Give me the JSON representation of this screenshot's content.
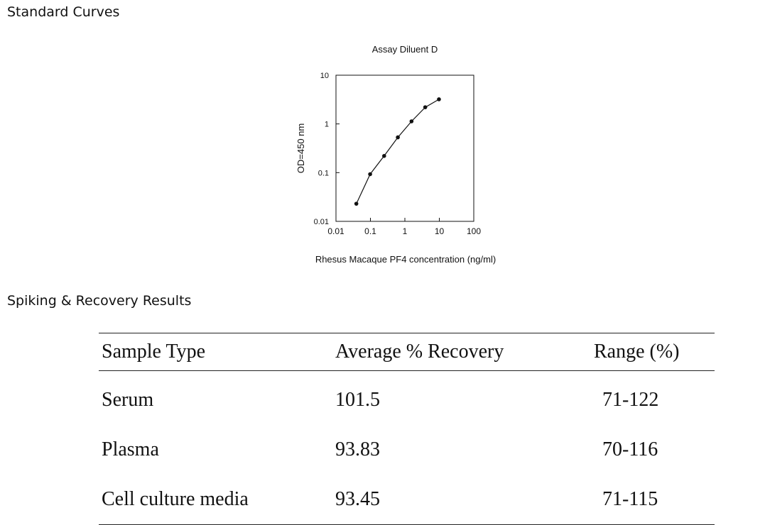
{
  "sections": {
    "standard_curves": "Standard Curves",
    "spiking_recovery": "Spiking & Recovery Results"
  },
  "chart_data": {
    "type": "line",
    "title": "Assay Diluent D",
    "xlabel": "Rhesus Macaque PF4 concentration (ng/ml)",
    "ylabel": "OD=450 nm",
    "x_scale": "log",
    "y_scale": "log",
    "xlim": [
      0.01,
      100
    ],
    "ylim": [
      0.01,
      10
    ],
    "x_ticks": [
      "0.01",
      "0.1",
      "1",
      "10",
      "100"
    ],
    "y_ticks": [
      "0.01",
      "0.1",
      "1",
      "10"
    ],
    "grid": false,
    "series": [
      {
        "x": [
          0.039,
          0.098,
          0.25,
          0.625,
          1.56,
          3.9,
          9.75
        ],
        "y": [
          0.023,
          0.093,
          0.22,
          0.53,
          1.13,
          2.2,
          3.2
        ]
      }
    ]
  },
  "table": {
    "headers": [
      "Sample Type",
      "Average % Recovery",
      "Range (%)"
    ],
    "rows": [
      [
        "Serum",
        "101.5",
        "71-122"
      ],
      [
        "Plasma",
        "93.83",
        "70-116"
      ],
      [
        "Cell culture media",
        "93.45",
        "71-115"
      ]
    ]
  }
}
